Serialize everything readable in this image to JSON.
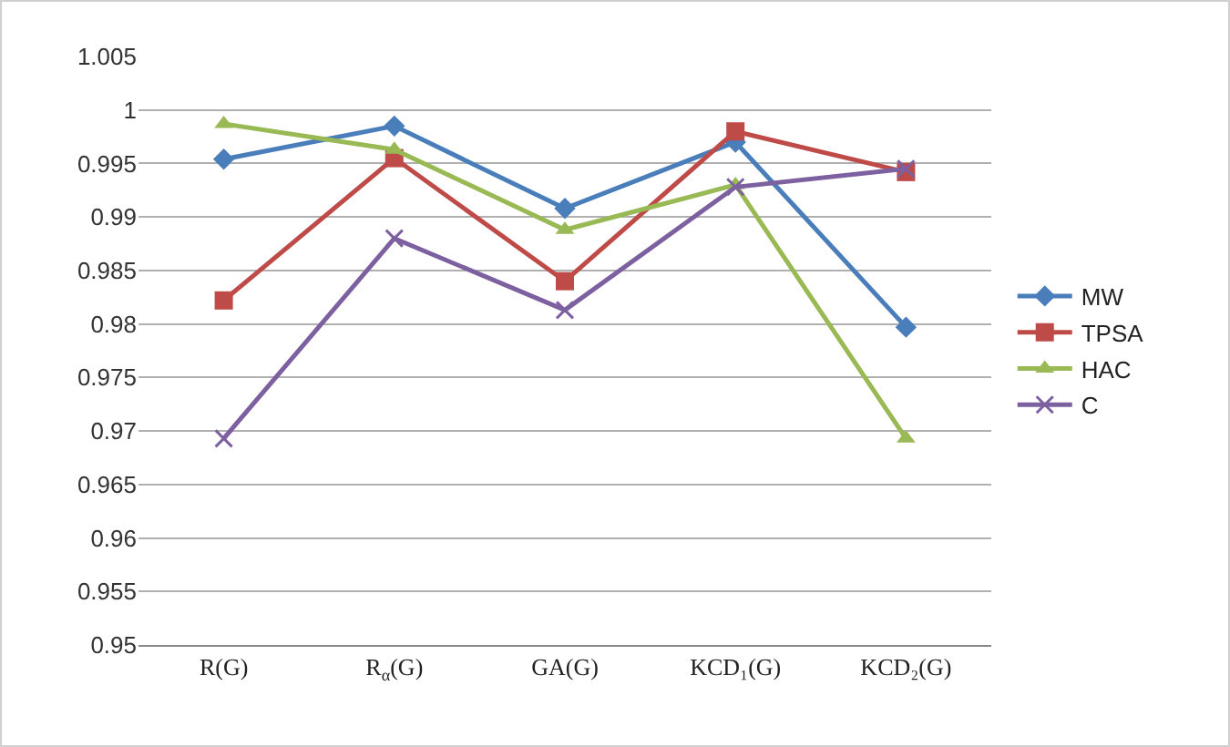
{
  "chart_data": {
    "type": "line",
    "categories": [
      "R(G)",
      "R$_{α}$(G)",
      "GA(G)",
      "KCD₁(G)",
      "KCD₂(G)"
    ],
    "series": [
      {
        "name": "MW",
        "color": "#4a7ebb",
        "marker": "diamond",
        "values": [
          0.9954,
          0.9985,
          0.9908,
          0.997,
          0.9797
        ]
      },
      {
        "name": "TPSA",
        "color": "#be4b48",
        "marker": "square",
        "values": [
          0.9822,
          0.9955,
          0.984,
          0.998,
          0.9942
        ]
      },
      {
        "name": "HAC",
        "color": "#98b954",
        "marker": "triangle",
        "values": [
          0.9987,
          0.9963,
          0.9888,
          0.993,
          0.9693
        ]
      },
      {
        "name": "C",
        "color": "#7d60a0",
        "marker": "cross",
        "values": [
          0.9693,
          0.988,
          0.9813,
          0.9928,
          0.9945
        ]
      }
    ],
    "ylim": [
      0.95,
      1.005
    ],
    "yticks": [
      0.95,
      0.955,
      0.96,
      0.965,
      0.97,
      0.975,
      0.98,
      0.985,
      0.99,
      0.995,
      1,
      1.005
    ],
    "grid": "y",
    "legend": "right",
    "line_style": "solid"
  }
}
